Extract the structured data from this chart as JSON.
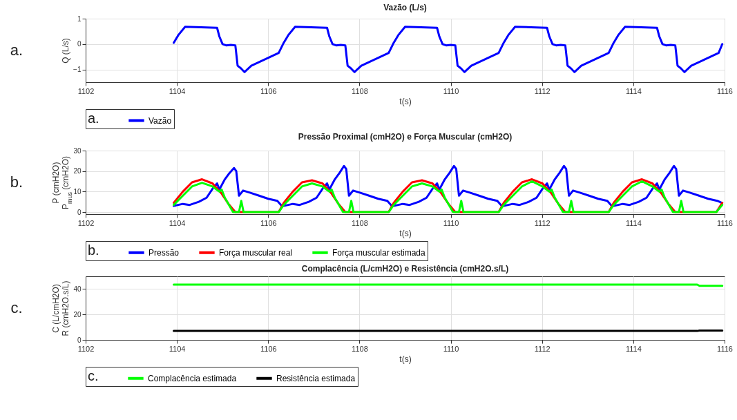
{
  "chart_data": [
    {
      "type": "line",
      "title": "Vazão (L/s)",
      "xlabel": "t(s)",
      "ylabel": "Q (L/s)",
      "xlim": [
        1102,
        1116
      ],
      "xticks": [
        1102,
        1104,
        1106,
        1108,
        1110,
        1112,
        1114,
        1116
      ],
      "ylim": [
        -1.5,
        1
      ],
      "yticks": [
        -1,
        0,
        1
      ],
      "grid": true,
      "legend": "bottom",
      "legend_title": "a.",
      "annotations": [
        "a."
      ],
      "series": [
        {
          "name": "Vazão",
          "color": "#0000ff",
          "x": [
            1103.93,
            1104.03,
            1104.18,
            1104.53,
            1104.88,
            1104.93,
            1105.0,
            1105.08,
            1105.18,
            1105.28,
            1105.33,
            1105.4,
            1105.48,
            1105.63,
            1105.93,
            1106.23,
            1106.34,
            1106.44,
            1106.59,
            1106.94,
            1107.29,
            1107.34,
            1107.41,
            1107.49,
            1107.59,
            1107.69,
            1107.74,
            1107.81,
            1107.89,
            1108.04,
            1108.34,
            1108.64,
            1108.75,
            1108.85,
            1109.0,
            1109.35,
            1109.7,
            1109.75,
            1109.82,
            1109.9,
            1110.0,
            1110.1,
            1110.15,
            1110.22,
            1110.3,
            1110.45,
            1110.75,
            1111.05,
            1111.16,
            1111.26,
            1111.41,
            1111.76,
            1112.11,
            1112.16,
            1112.23,
            1112.31,
            1112.41,
            1112.51,
            1112.56,
            1112.63,
            1112.71,
            1112.86,
            1113.16,
            1113.46,
            1113.57,
            1113.67,
            1113.82,
            1114.17,
            1114.52,
            1114.57,
            1114.64,
            1114.72,
            1114.82,
            1114.92,
            1114.97,
            1115.04,
            1115.12,
            1115.27,
            1115.57,
            1115.87,
            1115.95
          ],
          "values": [
            0.05,
            0.35,
            0.68,
            0.66,
            0.64,
            0.3,
            0.0,
            -0.05,
            -0.03,
            -0.05,
            -0.85,
            -0.95,
            -1.1,
            -0.85,
            -0.6,
            -0.35,
            0.05,
            0.35,
            0.68,
            0.66,
            0.64,
            0.3,
            0.0,
            -0.05,
            -0.03,
            -0.05,
            -0.85,
            -0.95,
            -1.1,
            -0.85,
            -0.6,
            -0.35,
            0.05,
            0.35,
            0.68,
            0.66,
            0.64,
            0.3,
            0.0,
            -0.05,
            -0.03,
            -0.05,
            -0.85,
            -0.95,
            -1.1,
            -0.85,
            -0.6,
            -0.35,
            0.05,
            0.35,
            0.68,
            0.66,
            0.64,
            0.3,
            0.0,
            -0.05,
            -0.03,
            -0.05,
            -0.85,
            -0.95,
            -1.1,
            -0.85,
            -0.6,
            -0.35,
            0.05,
            0.35,
            0.68,
            0.66,
            0.64,
            0.3,
            0.0,
            -0.05,
            -0.03,
            -0.05,
            -0.85,
            -0.95,
            -1.1,
            -0.85,
            -0.6,
            -0.35,
            0.0
          ]
        }
      ]
    },
    {
      "type": "line",
      "title": "Pressão Proximal (cmH2O) e Força Muscular (cmH2O)",
      "xlabel": "t(s)",
      "ylabel": "P (cmH2O)\nP$_{mus}$ (cmH2O)",
      "xlim": [
        1102,
        1116
      ],
      "xticks": [
        1102,
        1104,
        1106,
        1108,
        1110,
        1112,
        1114,
        1116
      ],
      "ylim": [
        -1,
        30
      ],
      "yticks": [
        0,
        10,
        20,
        30
      ],
      "grid": true,
      "legend": "bottom",
      "legend_title": "b.",
      "annotations": [
        "b."
      ],
      "series": [
        {
          "name": "Pressão",
          "color": "#0000ff",
          "x": [
            1103.93,
            1104.13,
            1104.28,
            1104.48,
            1104.65,
            1104.8,
            1104.88,
            1104.93,
            1105.05,
            1105.15,
            1105.25,
            1105.3,
            1105.36,
            1105.45,
            1105.6,
            1105.8,
            1106.0,
            1106.2,
            1106.3,
            1106.34,
            1106.54,
            1106.69,
            1106.89,
            1107.06,
            1107.21,
            1107.29,
            1107.34,
            1107.46,
            1107.56,
            1107.66,
            1107.71,
            1107.77,
            1107.86,
            1108.01,
            1108.21,
            1108.41,
            1108.61,
            1108.71,
            1108.75,
            1108.95,
            1109.1,
            1109.3,
            1109.47,
            1109.62,
            1109.7,
            1109.75,
            1109.87,
            1109.97,
            1110.07,
            1110.12,
            1110.18,
            1110.27,
            1110.42,
            1110.62,
            1110.82,
            1111.02,
            1111.12,
            1111.16,
            1111.36,
            1111.51,
            1111.71,
            1111.88,
            1112.03,
            1112.11,
            1112.16,
            1112.28,
            1112.38,
            1112.48,
            1112.53,
            1112.59,
            1112.68,
            1112.83,
            1113.03,
            1113.23,
            1113.43,
            1113.53,
            1113.57,
            1113.77,
            1113.92,
            1114.12,
            1114.29,
            1114.44,
            1114.52,
            1114.57,
            1114.69,
            1114.79,
            1114.89,
            1114.94,
            1115.0,
            1115.09,
            1115.24,
            1115.44,
            1115.64,
            1115.84,
            1115.94
          ],
          "values": [
            3,
            4,
            3.5,
            5,
            7,
            12,
            14,
            11,
            16,
            19,
            21.5,
            20,
            8,
            10.5,
            9.5,
            8,
            6.5,
            5.5,
            3,
            3,
            4,
            3.5,
            5,
            7,
            12,
            14,
            11,
            16,
            19,
            22.5,
            21,
            8,
            10.5,
            9.5,
            8,
            6.5,
            5.5,
            3,
            3,
            4,
            3.5,
            5,
            7,
            12,
            14,
            11,
            16,
            19,
            22.5,
            21,
            8,
            10.5,
            9.5,
            8,
            6.5,
            5.5,
            3,
            3,
            4,
            3.5,
            5,
            7,
            12,
            14,
            11,
            16,
            19,
            22.5,
            21,
            8,
            10.5,
            9.5,
            8,
            6.5,
            5.5,
            3,
            3,
            4,
            3.5,
            5,
            7,
            12,
            14,
            11,
            16,
            19,
            22.5,
            21,
            8,
            10.5,
            9.5,
            8,
            6.5,
            5.5,
            4.5
          ]
        },
        {
          "name": "Força muscular real",
          "color": "#ff0000",
          "x": [
            1103.93,
            1104.13,
            1104.33,
            1104.55,
            1104.78,
            1104.98,
            1105.13,
            1105.28,
            1106.23,
            1106.34,
            1106.54,
            1106.74,
            1106.96,
            1107.19,
            1107.39,
            1107.54,
            1107.69,
            1108.64,
            1108.75,
            1108.95,
            1109.15,
            1109.37,
            1109.6,
            1109.8,
            1109.95,
            1110.1,
            1111.05,
            1111.16,
            1111.36,
            1111.56,
            1111.78,
            1112.01,
            1112.21,
            1112.36,
            1112.51,
            1113.46,
            1113.57,
            1113.77,
            1113.97,
            1114.19,
            1114.42,
            1114.62,
            1114.77,
            1114.92,
            1115.82,
            1115.95
          ],
          "values": [
            4.5,
            10,
            14.5,
            16,
            14,
            9,
            4,
            0,
            0,
            4.5,
            10,
            14.5,
            15.5,
            14,
            9,
            4,
            0,
            0,
            4.5,
            10,
            14.5,
            15.5,
            14,
            9,
            4,
            0,
            0,
            4.5,
            10,
            14.5,
            16,
            14,
            9,
            4,
            0,
            0,
            4.5,
            10,
            14.5,
            16,
            14,
            9,
            4,
            0,
            0,
            4.5
          ]
        },
        {
          "name": "Força muscular estimada",
          "color": "#00ff00",
          "x": [
            1103.93,
            1104.13,
            1104.33,
            1104.55,
            1104.78,
            1104.93,
            1104.98,
            1105.05,
            1105.23,
            1105.36,
            1105.41,
            1105.46,
            1106.23,
            1106.34,
            1106.54,
            1106.74,
            1106.96,
            1107.19,
            1107.34,
            1107.39,
            1107.46,
            1107.64,
            1107.77,
            1107.82,
            1107.87,
            1108.64,
            1108.75,
            1108.95,
            1109.15,
            1109.37,
            1109.6,
            1109.75,
            1109.8,
            1109.87,
            1110.05,
            1110.18,
            1110.23,
            1110.28,
            1111.05,
            1111.16,
            1111.36,
            1111.56,
            1111.78,
            1112.01,
            1112.16,
            1112.21,
            1112.28,
            1112.46,
            1112.59,
            1112.64,
            1112.69,
            1113.46,
            1113.57,
            1113.77,
            1113.97,
            1114.19,
            1114.42,
            1114.57,
            1114.62,
            1114.69,
            1114.87,
            1115.0,
            1115.05,
            1115.1,
            1115.82,
            1115.95
          ],
          "values": [
            3.5,
            8,
            12.5,
            14.3,
            12.5,
            10,
            11,
            7,
            0,
            0,
            5.5,
            0,
            0,
            3.5,
            8,
            12.5,
            14,
            12.5,
            10,
            11,
            7,
            0,
            0,
            5.5,
            0,
            0,
            3.5,
            8,
            12.5,
            14,
            12.5,
            10,
            11,
            7,
            0,
            0,
            5.5,
            0,
            0,
            3.5,
            8,
            12.5,
            15,
            12.5,
            10,
            11,
            7,
            0,
            0,
            5.5,
            0,
            0,
            3.5,
            8,
            12.5,
            15,
            12.5,
            10,
            11,
            7,
            0,
            0,
            5.5,
            0,
            0,
            3.5
          ]
        }
      ]
    },
    {
      "type": "line",
      "title": "Complacência (L/cmH2O) e Resistência (cmH2O.s/L)",
      "xlabel": "t(s)",
      "ylabel": "C (L/cmH2O)\nR (cmH2O.s/L)",
      "xlim": [
        1102,
        1116
      ],
      "xticks": [
        1102,
        1104,
        1106,
        1108,
        1110,
        1112,
        1114,
        1116
      ],
      "ylim": [
        0,
        50
      ],
      "yticks": [
        0,
        20,
        40
      ],
      "grid": true,
      "legend": "bottom",
      "legend_title": "c.",
      "annotations": [
        "c."
      ],
      "series": [
        {
          "name": "Complacência estimada",
          "color": "#00ff00",
          "x": [
            1103.93,
            1115.4,
            1115.45,
            1115.95
          ],
          "values": [
            43.5,
            43.5,
            42.5,
            42.5
          ]
        },
        {
          "name": "Resistência estimada",
          "color": "#000000",
          "x": [
            1103.93,
            1115.4,
            1115.45,
            1115.95
          ],
          "values": [
            7,
            7,
            7.3,
            7.3
          ]
        }
      ]
    }
  ]
}
